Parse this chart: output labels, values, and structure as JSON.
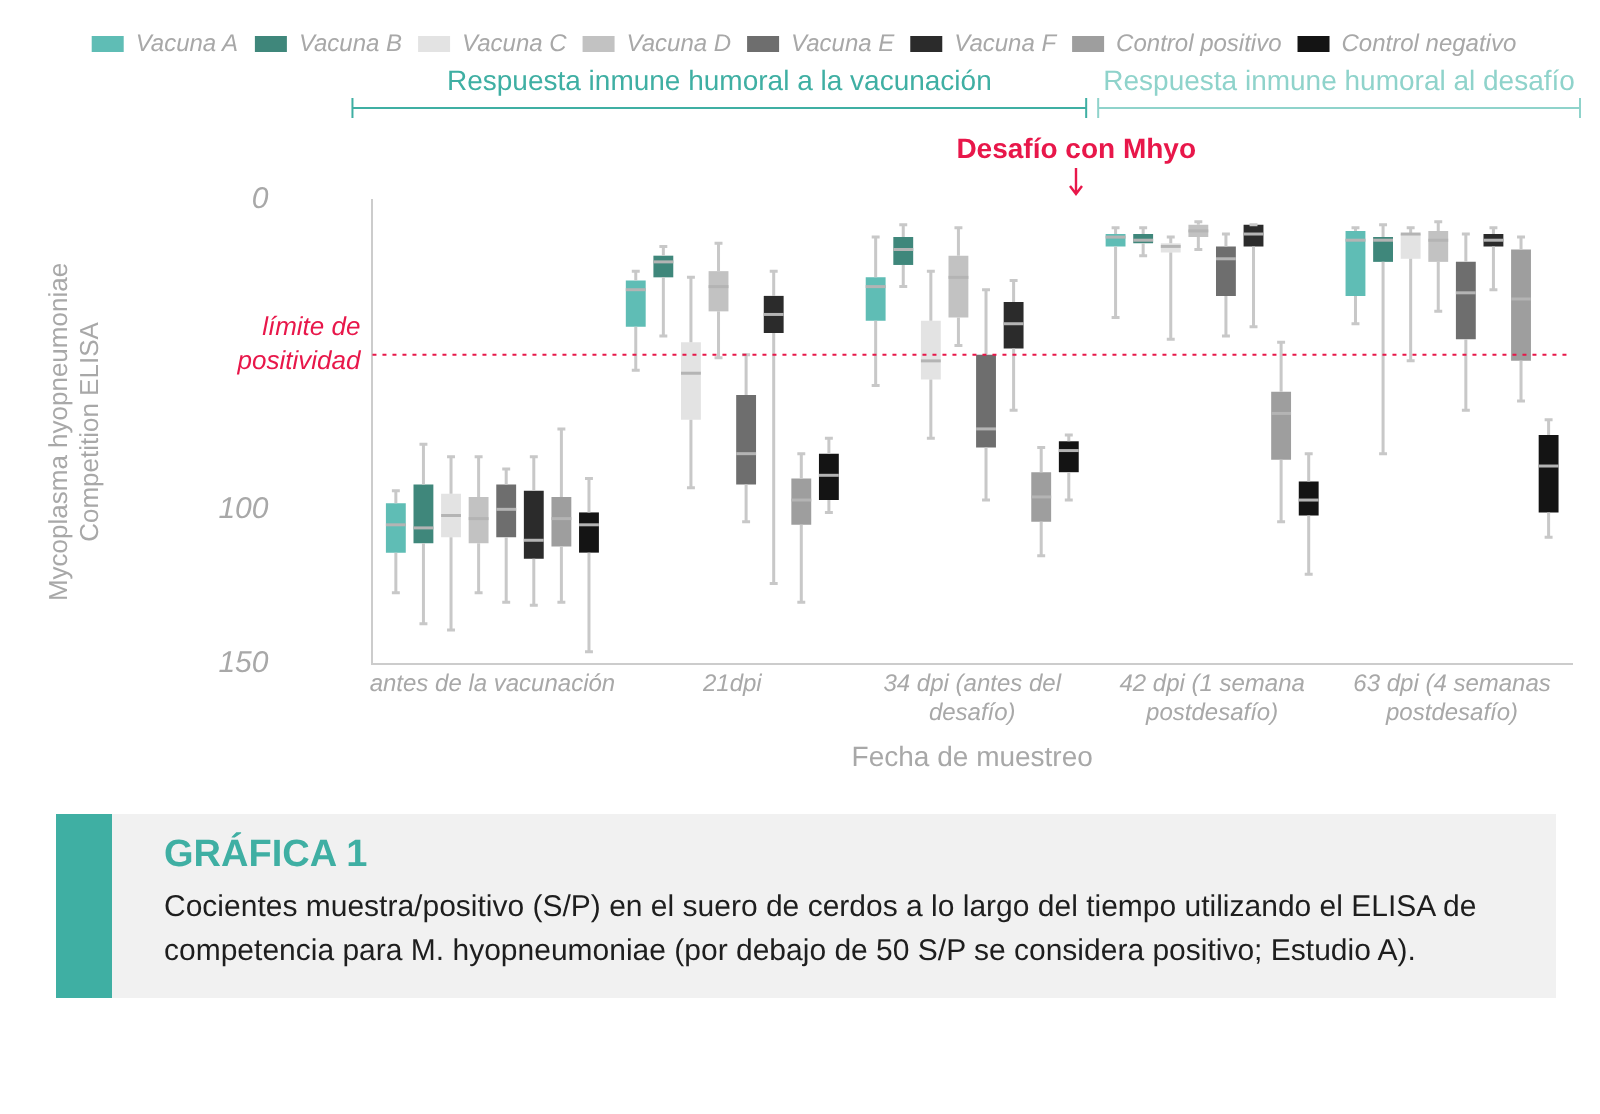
{
  "chart_data": {
    "type": "box",
    "title": "GRÁFICA 1",
    "xlabel": "Fecha de muestreo",
    "ylabel": "Mycoplasma hyopneumoniae Competition ELISA",
    "categories": [
      "antes de la vacunación",
      "21dpi",
      "34 dpi (antes del desafío)",
      "42 dpi (1 semana postdesafío)",
      "63 dpi (4 semanas postdesafío)"
    ],
    "ylim": [
      150,
      0
    ],
    "yticks": [
      0,
      100,
      150
    ],
    "legend": "top",
    "grid": false,
    "ref_lines": [
      {
        "axis": "y",
        "value": 50,
        "label": "límite de positividad",
        "color": "#e8174a",
        "line_style": "dotted"
      }
    ],
    "annotations": [
      "Respuesta inmune humoral a la vacunación",
      "Respuesta inmune humoral al desafío",
      "Desafío con Mhyo",
      "Cocientes muestra/positivo (S/P) en el suero de cerdos a lo largo del tiempo utilizando el ELISA de competencia para M. hyopneumoniae (por debajo de 50 S/P se considera positivo; Estudio A)."
    ],
    "series": [
      {
        "name": "Vacuna A",
        "color": "#5fbdb5",
        "boxes": [
          {
            "low": 94,
            "q1": 98,
            "median": 105,
            "q3": 114,
            "high": 127
          },
          {
            "low": 23,
            "q1": 26,
            "median": 29,
            "q3": 41,
            "high": 55
          },
          {
            "low": 12,
            "q1": 25,
            "median": 28,
            "q3": 39,
            "high": 60
          },
          {
            "low": 9,
            "q1": 11,
            "median": 12,
            "q3": 15,
            "high": 38
          },
          {
            "low": 9,
            "q1": 10,
            "median": 13,
            "q3": 31,
            "high": 40
          }
        ]
      },
      {
        "name": "Vacuna B",
        "color": "#3f877b",
        "boxes": [
          {
            "low": 79,
            "q1": 92,
            "median": 106,
            "q3": 111,
            "high": 137
          },
          {
            "low": 15,
            "q1": 18,
            "median": 20,
            "q3": 25,
            "high": 44
          },
          {
            "low": 8,
            "q1": 12,
            "median": 16,
            "q3": 21,
            "high": 28
          },
          {
            "low": 9,
            "q1": 11,
            "median": 13,
            "q3": 14,
            "high": 18
          },
          {
            "low": 8,
            "q1": 12,
            "median": 13,
            "q3": 20,
            "high": 82
          }
        ]
      },
      {
        "name": "Vacuna C",
        "color": "#e3e3e3",
        "boxes": [
          {
            "low": 83,
            "q1": 95,
            "median": 102,
            "q3": 109,
            "high": 139
          },
          {
            "low": 25,
            "q1": 46,
            "median": 56,
            "q3": 71,
            "high": 93
          },
          {
            "low": 23,
            "q1": 39,
            "median": 52,
            "q3": 58,
            "high": 77
          },
          {
            "low": 12,
            "q1": 14,
            "median": 15,
            "q3": 17,
            "high": 45
          },
          {
            "low": 9,
            "q1": 11,
            "median": 11,
            "q3": 19,
            "high": 52
          }
        ]
      },
      {
        "name": "Vacuna D",
        "color": "#c2c2c2",
        "boxes": [
          {
            "low": 83,
            "q1": 96,
            "median": 103,
            "q3": 111,
            "high": 127
          },
          {
            "low": 14,
            "q1": 23,
            "median": 28,
            "q3": 36,
            "high": 51
          },
          {
            "low": 9,
            "q1": 18,
            "median": 25,
            "q3": 38,
            "high": 47
          },
          {
            "low": 7,
            "q1": 8,
            "median": 10,
            "q3": 12,
            "high": 16
          },
          {
            "low": 7,
            "q1": 10,
            "median": 13,
            "q3": 20,
            "high": 36
          }
        ]
      },
      {
        "name": "Vacuna E",
        "color": "#6e6e6e",
        "boxes": [
          {
            "low": 87,
            "q1": 92,
            "median": 100,
            "q3": 109,
            "high": 130
          },
          {
            "low": 50,
            "q1": 63,
            "median": 82,
            "q3": 92,
            "high": 104
          },
          {
            "low": 29,
            "q1": 50,
            "median": 74,
            "q3": 80,
            "high": 97
          },
          {
            "low": 11,
            "q1": 15,
            "median": 19,
            "q3": 31,
            "high": 44
          },
          {
            "low": 11,
            "q1": 20,
            "median": 30,
            "q3": 45,
            "high": 68
          }
        ]
      },
      {
        "name": "Vacuna F",
        "color": "#2b2b2b",
        "boxes": [
          {
            "low": 83,
            "q1": 94,
            "median": 110,
            "q3": 116,
            "high": 131
          },
          {
            "low": 23,
            "q1": 31,
            "median": 37,
            "q3": 43,
            "high": 124
          },
          {
            "low": 26,
            "q1": 33,
            "median": 40,
            "q3": 48,
            "high": 68
          },
          {
            "low": 8,
            "q1": 8,
            "median": 11,
            "q3": 15,
            "high": 41
          },
          {
            "low": 9,
            "q1": 11,
            "median": 13,
            "q3": 15,
            "high": 29
          }
        ]
      },
      {
        "name": "Control positivo",
        "color": "#9e9e9e",
        "boxes": [
          {
            "low": 74,
            "q1": 96,
            "median": 103,
            "q3": 112,
            "high": 130
          },
          {
            "low": 82,
            "q1": 90,
            "median": 97,
            "q3": 105,
            "high": 130
          },
          {
            "low": 80,
            "q1": 88,
            "median": 96,
            "q3": 104,
            "high": 115
          },
          {
            "low": 46,
            "q1": 62,
            "median": 69,
            "q3": 84,
            "high": 104
          },
          {
            "low": 12,
            "q1": 16,
            "median": 32,
            "q3": 52,
            "high": 65
          }
        ]
      },
      {
        "name": "Control negativo",
        "color": "#141414",
        "boxes": [
          {
            "low": 90,
            "q1": 101,
            "median": 105,
            "q3": 114,
            "high": 146
          },
          {
            "low": 77,
            "q1": 82,
            "median": 89,
            "q3": 97,
            "high": 101
          },
          {
            "low": 76,
            "q1": 78,
            "median": 81,
            "q3": 88,
            "high": 97
          },
          {
            "low": 82,
            "q1": 91,
            "median": 97,
            "q3": 102,
            "high": 121
          },
          {
            "low": 71,
            "q1": 76,
            "median": 86,
            "q3": 101,
            "high": 109
          }
        ]
      }
    ]
  }
}
